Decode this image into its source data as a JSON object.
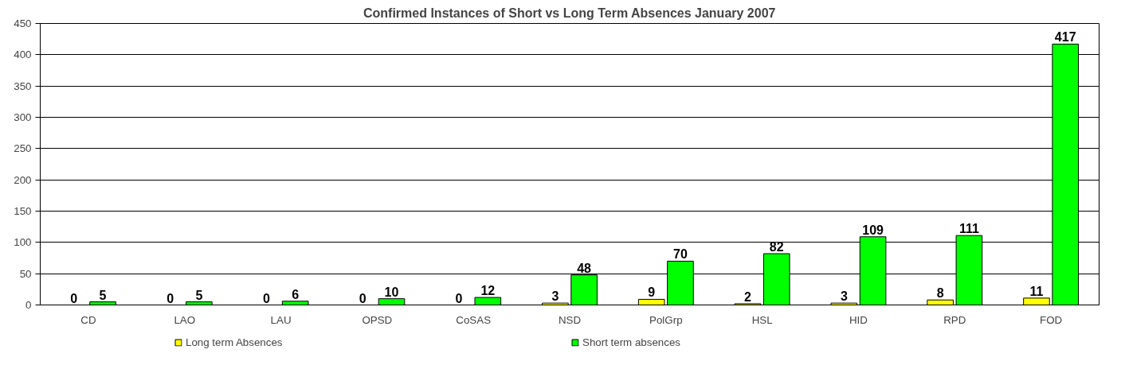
{
  "chart_data": {
    "type": "bar",
    "title": "Confirmed Instances of Short vs Long Term Absences January 2007",
    "categories": [
      "CD",
      "LAO",
      "LAU",
      "OPSD",
      "CoSAS",
      "NSD",
      "PolGrp",
      "HSL",
      "HID",
      "RPD",
      "FOD"
    ],
    "series": [
      {
        "name": "Long term Absences",
        "color": "#ffff00",
        "values": [
          0,
          0,
          0,
          0,
          0,
          3,
          9,
          2,
          3,
          8,
          11
        ]
      },
      {
        "name": "Short term absences",
        "color": "#00ff00",
        "values": [
          5,
          5,
          6,
          10,
          12,
          48,
          70,
          82,
          109,
          111,
          417
        ]
      }
    ],
    "ylim": [
      0,
      450
    ],
    "yticks": [
      0,
      50,
      100,
      150,
      200,
      250,
      300,
      350,
      400,
      450
    ],
    "grid": "y",
    "legend": "bottom",
    "data_labels": true
  }
}
